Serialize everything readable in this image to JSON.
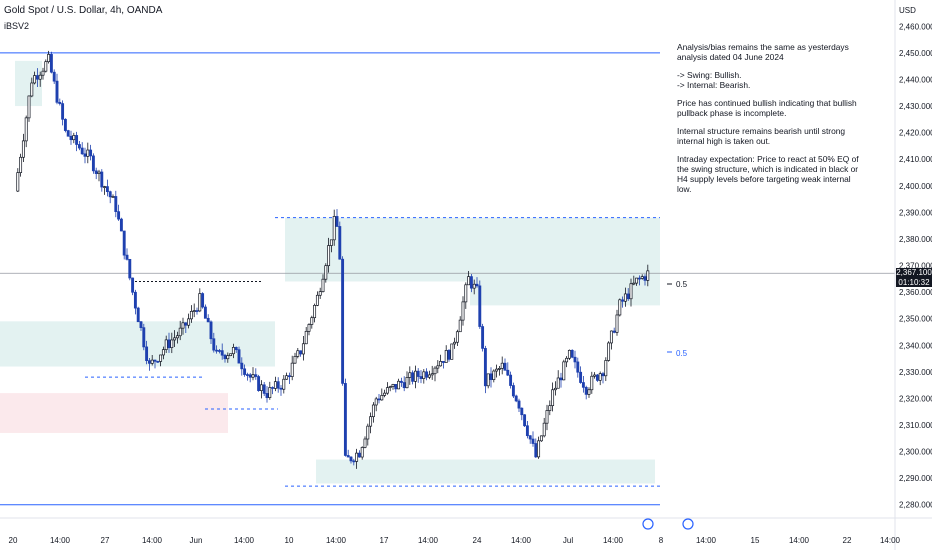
{
  "header": {
    "symbol_line": "Gold Spot / U.S. Dollar, 4h, OANDA",
    "indicator": "iBSV2"
  },
  "axis": {
    "currency": "USD",
    "price_ticks": [
      "2,460.000",
      "2,450.000",
      "2,440.000",
      "2,430.000",
      "2,420.000",
      "2,410.000",
      "2,400.000",
      "2,390.000",
      "2,380.000",
      "2,370.000",
      "2,360.000",
      "2,350.000",
      "2,340.000",
      "2,330.000",
      "2,320.000",
      "2,310.000",
      "2,300.000",
      "2,290.000",
      "2,280.000"
    ],
    "time_ticks": [
      "20",
      "14:00",
      "27",
      "14:00",
      "Jun",
      "14:00",
      "10",
      "14:00",
      "17",
      "14:00",
      "24",
      "14:00",
      "Jul",
      "14:00",
      "8",
      "14:00",
      "15",
      "14:00",
      "22",
      "14:00"
    ]
  },
  "current_price": {
    "price": "2,367.100",
    "countdown": "01:10:32"
  },
  "annotation": {
    "paragraphs": [
      "Analysis/bias remains the same as yesterdays analysis dated 04 June 2024",
      "-> Swing:  Bullish.\n-> Internal:  Bearish.",
      "Price has continued bullish indicating that bullish pullback phase is incomplete.",
      "Internal structure remains bearish until strong internal high is taken out.",
      "Intraday expectation: Price to react at 50% EQ of the swing structure, which is indicated in black or H4 supply levels before targeting weak internal low."
    ]
  },
  "level_labels": {
    "black_eq": "0.5",
    "blue_eq": "0.5"
  },
  "colors": {
    "bull_candle": "#131722",
    "bear_candle": "#1e40af",
    "demand_zone": "#e3f2f1",
    "supply_zone": "#fbe9ec",
    "level_line": "#2962ff",
    "price_line": "#9598a1"
  },
  "chart_data": {
    "type": "candlestick",
    "title": "Gold Spot / U.S. Dollar, 4h, OANDA",
    "ylabel": "USD",
    "ylim": [
      2275,
      2465
    ],
    "grid": false,
    "last_price": 2367.1,
    "close_path": [
      {
        "d": 0.0,
        "p": 2398
      },
      {
        "d": 1.0,
        "p": 2440
      },
      {
        "d": 2.0,
        "p": 2447
      },
      {
        "d": 3.0,
        "p": 2420
      },
      {
        "d": 4.5,
        "p": 2410
      },
      {
        "d": 6.0,
        "p": 2392
      },
      {
        "d": 7.0,
        "p": 2360
      },
      {
        "d": 8.0,
        "p": 2332
      },
      {
        "d": 9.0,
        "p": 2340
      },
      {
        "d": 10.0,
        "p": 2346
      },
      {
        "d": 11.0,
        "p": 2357
      },
      {
        "d": 12.0,
        "p": 2336
      },
      {
        "d": 13.0,
        "p": 2338
      },
      {
        "d": 14.0,
        "p": 2328
      },
      {
        "d": 15.0,
        "p": 2322
      },
      {
        "d": 16.0,
        "p": 2326
      },
      {
        "d": 17.0,
        "p": 2338
      },
      {
        "d": 18.0,
        "p": 2358
      },
      {
        "d": 19.0,
        "p": 2386
      },
      {
        "d": 19.3,
        "p": 2383
      },
      {
        "d": 19.6,
        "p": 2296
      },
      {
        "d": 20.5,
        "p": 2300
      },
      {
        "d": 21.5,
        "p": 2320
      },
      {
        "d": 23.0,
        "p": 2326
      },
      {
        "d": 24.5,
        "p": 2330
      },
      {
        "d": 26.0,
        "p": 2338
      },
      {
        "d": 27.0,
        "p": 2365
      },
      {
        "d": 27.5,
        "p": 2360
      },
      {
        "d": 28.0,
        "p": 2326
      },
      {
        "d": 29.0,
        "p": 2332
      },
      {
        "d": 30.0,
        "p": 2318
      },
      {
        "d": 31.0,
        "p": 2298
      },
      {
        "d": 32.0,
        "p": 2322
      },
      {
        "d": 33.0,
        "p": 2336
      },
      {
        "d": 34.0,
        "p": 2324
      },
      {
        "d": 35.0,
        "p": 2331
      },
      {
        "d": 36.0,
        "p": 2355
      },
      {
        "d": 37.0,
        "p": 2364
      },
      {
        "d": 37.7,
        "p": 2367.1
      }
    ],
    "horizontal_levels": [
      {
        "price": 2450,
        "style": "solid",
        "color": "blue"
      },
      {
        "price": 2388,
        "style": "dashed",
        "color": "blue"
      },
      {
        "price": 2364,
        "style": "dotted",
        "color": "black"
      },
      {
        "price": 2328,
        "style": "dashed",
        "color": "blue"
      },
      {
        "price": 2316,
        "style": "dashed",
        "color": "blue"
      },
      {
        "price": 2287,
        "style": "dashed",
        "color": "blue"
      },
      {
        "price": 2280,
        "style": "solid",
        "color": "blue"
      }
    ],
    "zones": [
      {
        "kind": "demand",
        "from": 2447,
        "to": 2430
      },
      {
        "kind": "demand",
        "from": 2349,
        "to": 2332
      },
      {
        "kind": "supply",
        "from": 2322,
        "to": 2307
      },
      {
        "kind": "demand",
        "from": 2388,
        "to": 2364
      },
      {
        "kind": "demand",
        "from": 2366,
        "to": 2355
      },
      {
        "kind": "demand",
        "from": 2297,
        "to": 2288
      }
    ]
  }
}
